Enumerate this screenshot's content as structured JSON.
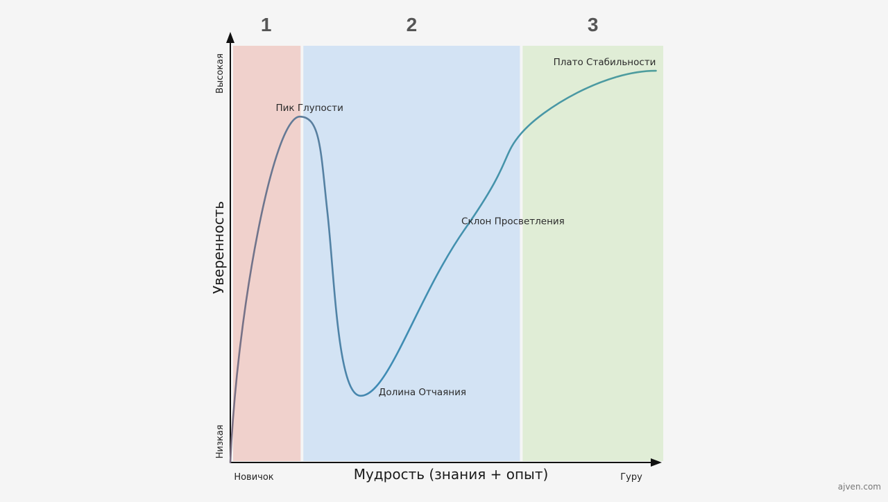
{
  "chart_data": {
    "type": "line",
    "xlabel": "Мудрость (знания + опыт)",
    "ylabel": "Уверенность",
    "xlim": [
      0,
      100
    ],
    "ylim": [
      0,
      100
    ],
    "x_ticks": {
      "start": "Новичок",
      "end": "Гуру"
    },
    "y_ticks": {
      "low": "Низкая",
      "high": "Высокая"
    },
    "zones": [
      {
        "label": "1",
        "x_range": [
          0,
          16.5
        ],
        "color": "#f0d1cc"
      },
      {
        "label": "2",
        "x_range": [
          16.5,
          67
        ],
        "color": "#d3e3f4"
      },
      {
        "label": "3",
        "x_range": [
          67,
          100
        ],
        "color": "#e0edd6"
      }
    ],
    "series": [
      {
        "points": [
          {
            "x": 0,
            "y": 0
          },
          {
            "x": 16,
            "y": 83
          },
          {
            "x": 30,
            "y": 16
          },
          {
            "x": 54,
            "y": 56
          },
          {
            "x": 67,
            "y": 79
          },
          {
            "x": 98,
            "y": 94
          }
        ],
        "colors": [
          "#7b6f82",
          "#3e8bb5",
          "#4f9e9c"
        ]
      }
    ],
    "annotations": [
      {
        "text": "Пик Глупости",
        "x": 16,
        "y": 83
      },
      {
        "text": "Долина Отчаяния",
        "x": 30,
        "y": 16
      },
      {
        "text": "Склон Просветления",
        "x": 54,
        "y": 56
      },
      {
        "text": "Плато Стабильности",
        "x": 98,
        "y": 94
      }
    ]
  },
  "watermark": "ajven.com"
}
